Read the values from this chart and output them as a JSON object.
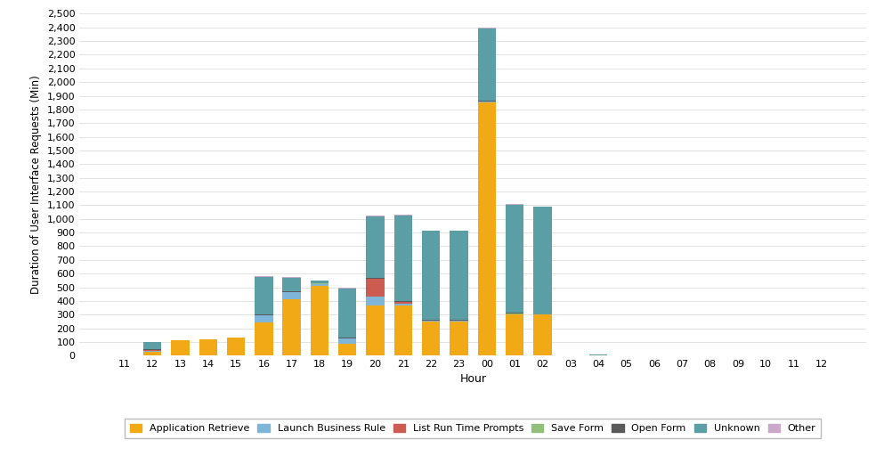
{
  "hours": [
    "11",
    "12",
    "13",
    "14",
    "15",
    "16",
    "17",
    "18",
    "19",
    "20",
    "21",
    "22",
    "23",
    "00",
    "01",
    "02",
    "03",
    "04",
    "05",
    "06",
    "07",
    "08",
    "09",
    "10",
    "11",
    "12"
  ],
  "series": {
    "Application Retrieve": [
      0,
      30,
      110,
      120,
      130,
      245,
      415,
      510,
      85,
      370,
      370,
      250,
      250,
      1850,
      300,
      300,
      0,
      0,
      0,
      0,
      0,
      0,
      0,
      0,
      0,
      0
    ],
    "Launch Business Rule": [
      0,
      5,
      0,
      0,
      0,
      50,
      50,
      15,
      40,
      60,
      10,
      5,
      5,
      5,
      5,
      0,
      0,
      0,
      0,
      0,
      0,
      0,
      0,
      0,
      0,
      0
    ],
    "List Run Time Prompts": [
      0,
      5,
      0,
      0,
      0,
      0,
      0,
      0,
      0,
      130,
      10,
      0,
      0,
      0,
      0,
      0,
      0,
      0,
      0,
      0,
      0,
      0,
      0,
      0,
      0,
      0
    ],
    "Save Form": [
      0,
      2,
      0,
      0,
      0,
      2,
      2,
      2,
      2,
      2,
      2,
      2,
      2,
      2,
      2,
      0,
      0,
      0,
      0,
      0,
      0,
      0,
      0,
      0,
      0,
      0
    ],
    "Open Form": [
      0,
      5,
      0,
      0,
      0,
      5,
      5,
      5,
      5,
      5,
      5,
      5,
      5,
      5,
      5,
      0,
      0,
      0,
      0,
      0,
      0,
      0,
      0,
      0,
      0,
      0
    ],
    "Unknown": [
      0,
      50,
      0,
      0,
      0,
      275,
      100,
      15,
      360,
      450,
      630,
      650,
      650,
      530,
      790,
      790,
      0,
      8,
      0,
      0,
      0,
      0,
      0,
      0,
      0,
      0
    ],
    "Other": [
      0,
      5,
      0,
      0,
      0,
      5,
      5,
      5,
      5,
      5,
      5,
      5,
      5,
      5,
      5,
      0,
      0,
      0,
      0,
      0,
      0,
      0,
      0,
      0,
      0,
      0
    ]
  },
  "colors": {
    "Application Retrieve": "#F2A916",
    "Launch Business Rule": "#7EB5D9",
    "List Run Time Prompts": "#CC5B52",
    "Save Form": "#92C07A",
    "Open Form": "#595959",
    "Unknown": "#5B9EA6",
    "Other": "#C9A8C9"
  },
  "ylabel": "Duration of User Interface Requests (Min)",
  "xlabel": "Hour",
  "ylim": [
    0,
    2500
  ],
  "yticks": [
    0,
    100,
    200,
    300,
    400,
    500,
    600,
    700,
    800,
    900,
    1000,
    1100,
    1200,
    1300,
    1400,
    1500,
    1600,
    1700,
    1800,
    1900,
    2000,
    2100,
    2200,
    2300,
    2400,
    2500
  ],
  "background_color": "#ffffff",
  "grid_color": "#d8d8d8"
}
